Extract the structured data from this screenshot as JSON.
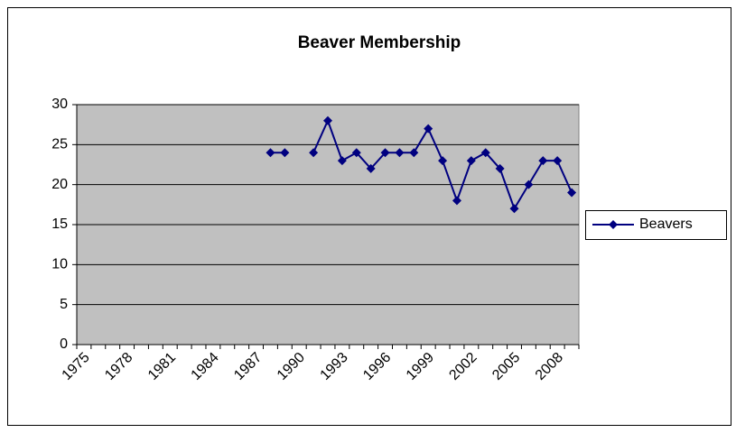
{
  "chart_data": {
    "type": "line",
    "title": "Beaver Membership",
    "categories": [
      "1975",
      null,
      null,
      "1978",
      null,
      null,
      "1981",
      null,
      null,
      "1984",
      null,
      null,
      "1987",
      null,
      null,
      "1990",
      null,
      null,
      "1993",
      null,
      null,
      "1996",
      null,
      null,
      "1999",
      null,
      null,
      "2002",
      null,
      null,
      "2005",
      null,
      null,
      "2008",
      null
    ],
    "series": [
      {
        "name": "Beavers",
        "color": "#000080",
        "values": [
          null,
          null,
          null,
          null,
          null,
          null,
          null,
          null,
          null,
          null,
          null,
          null,
          null,
          24,
          24,
          null,
          24,
          28,
          23,
          24,
          22,
          24,
          24,
          24,
          27,
          23,
          18,
          23,
          24,
          22,
          17,
          20,
          23,
          23,
          19
        ]
      }
    ],
    "ylim": [
      0,
      30
    ],
    "yticks": [
      0,
      5,
      10,
      15,
      20,
      25,
      30
    ],
    "grid": true,
    "legend": "right"
  }
}
